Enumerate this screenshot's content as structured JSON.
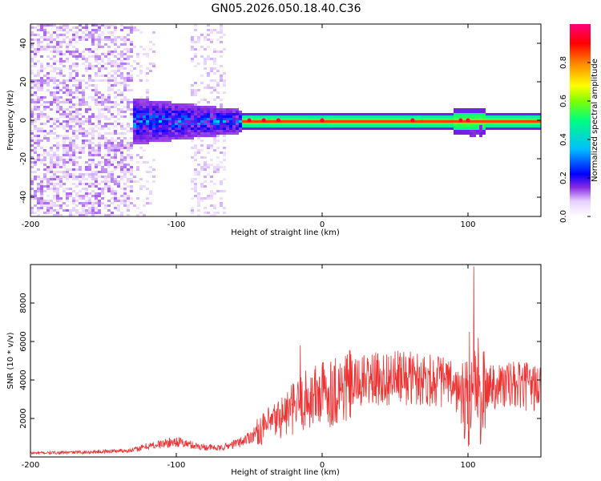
{
  "title": "GN05.2026.050.18.40.C36",
  "chart_data": [
    {
      "type": "heatmap",
      "title": "GN05.2026.050.18.40.C36",
      "xlabel": "Height of straight line (km)",
      "ylabel": "Frequency (Hz)",
      "xlim": [
        -200,
        150
      ],
      "ylim": [
        -50,
        50
      ],
      "xticks": [
        -200,
        -100,
        0,
        100
      ],
      "xtick_labels": [
        "-200",
        "-100",
        "0",
        "100"
      ],
      "yticks": [
        -40,
        -20,
        0,
        20,
        40
      ],
      "ytick_labels": [
        "-40",
        "-20",
        "0",
        "20",
        "40"
      ],
      "colorbar": {
        "label": "Normalized spectral amplitude",
        "range": [
          0,
          1
        ],
        "ticks": [
          0,
          0.2,
          0.4,
          0.6,
          0.8
        ],
        "tick_labels": [
          "0.0",
          "0.2",
          "0.4",
          "0.6",
          "0.8"
        ],
        "colormap": [
          "#ffffff",
          "#e6d0ff",
          "#8a2be2",
          "#0000ff",
          "#00bfff",
          "#00ff80",
          "#80ff00",
          "#ffff00",
          "#ff8000",
          "#ff0000",
          "#ff0080"
        ]
      },
      "features": {
        "noise_region_x": [
          -200,
          -130
        ],
        "burst_region_x": [
          -135,
          -55
        ],
        "ridge_x": [
          -55,
          150
        ],
        "ridge_center_hz": 0,
        "hot_spots_x": [
          -50,
          -40,
          -30,
          0,
          62,
          95,
          100
        ]
      }
    },
    {
      "type": "line",
      "xlabel": "Height of straight line (km)",
      "ylabel": "SNR (10 * v/v)",
      "xlim": [
        -200,
        150
      ],
      "ylim": [
        0,
        10000
      ],
      "xticks": [
        -200,
        -100,
        0,
        100
      ],
      "xtick_labels": [
        "-200",
        "-100",
        "0",
        "100"
      ],
      "yticks": [
        2000,
        4000,
        6000,
        8000
      ],
      "ytick_labels": [
        "2000",
        "4000",
        "6000",
        "8000"
      ],
      "color": "#ee3333",
      "envelope": {
        "x": [
          -200,
          -160,
          -130,
          -120,
          -100,
          -85,
          -70,
          -55,
          -40,
          -30,
          -20,
          -10,
          0,
          10,
          20,
          30,
          50,
          70,
          85,
          95,
          100,
          104,
          108,
          115,
          130,
          150
        ],
        "y": [
          200,
          250,
          350,
          550,
          800,
          550,
          450,
          800,
          1500,
          2000,
          2500,
          3000,
          3300,
          3500,
          3700,
          4000,
          4100,
          4100,
          3900,
          3300,
          2500,
          4200,
          2800,
          3800,
          3700,
          3600
        ]
      },
      "spikes": [
        {
          "x": -15,
          "y": 5800
        },
        {
          "x": 101,
          "y": 6500
        },
        {
          "x": 104,
          "y": 9900
        },
        {
          "x": 107,
          "y": 6200
        }
      ]
    }
  ]
}
